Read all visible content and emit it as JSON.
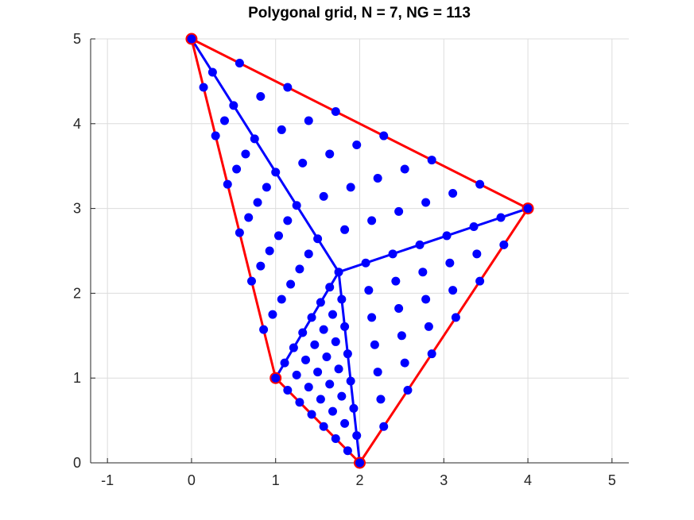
{
  "chart_data": {
    "type": "scatter",
    "title": "Polygonal grid, N = 7, NG = 113",
    "xlabel": "",
    "ylabel": "",
    "xlim": [
      -1.2,
      5.2
    ],
    "ylim": [
      0,
      5
    ],
    "xticks": [
      "-1",
      "0",
      "1",
      "2",
      "3",
      "4",
      "5"
    ],
    "yticks": [
      "0",
      "1",
      "2",
      "3",
      "4",
      "5"
    ],
    "grid": true,
    "colors": {
      "boundary": "#ff0000",
      "spokes": "#0000ff",
      "points": "#0000ff",
      "vertex_edge": "#ff0000"
    },
    "polygon": [
      [
        0,
        5
      ],
      [
        4,
        3
      ],
      [
        2,
        0
      ],
      [
        1,
        1
      ]
    ],
    "centroid": [
      1.75,
      2.25
    ],
    "grid_points_note": "113 points arranged on triangles from centroid to each edge"
  }
}
